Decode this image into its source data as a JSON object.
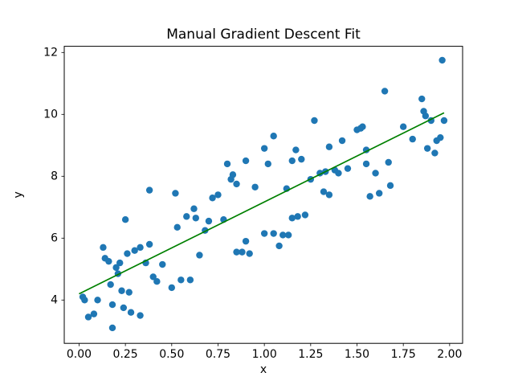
{
  "figure": {
    "title": "Manual Gradient Descent Fit",
    "xlabel": "x",
    "ylabel": "y"
  },
  "chart_data": {
    "type": "scatter",
    "title": "Manual Gradient Descent Fit",
    "xlabel": "x",
    "ylabel": "y",
    "xlim": [
      -0.08,
      2.07
    ],
    "ylim": [
      2.6,
      12.2
    ],
    "xticks": [
      0.0,
      0.25,
      0.5,
      0.75,
      1.0,
      1.25,
      1.5,
      1.75,
      2.0
    ],
    "xtick_labels": [
      "0.00",
      "0.25",
      "0.50",
      "0.75",
      "1.00",
      "1.25",
      "1.50",
      "1.75",
      "2.00"
    ],
    "yticks": [
      4,
      6,
      8,
      10,
      12
    ],
    "ytick_labels": [
      "4",
      "6",
      "8",
      "10",
      "12"
    ],
    "grid": false,
    "legend": "none",
    "point_color": "#1f77b4",
    "line_color": "#008000",
    "fit_line": {
      "x": [
        0.0,
        1.97
      ],
      "y": [
        4.2,
        10.05
      ],
      "slope_estimate": 2.97,
      "intercept_estimate": 4.2
    },
    "points": [
      [
        0.02,
        4.1
      ],
      [
        0.03,
        4.0
      ],
      [
        0.05,
        3.45
      ],
      [
        0.08,
        3.55
      ],
      [
        0.1,
        4.0
      ],
      [
        0.13,
        5.7
      ],
      [
        0.14,
        5.35
      ],
      [
        0.16,
        5.25
      ],
      [
        0.17,
        4.5
      ],
      [
        0.18,
        3.85
      ],
      [
        0.18,
        3.1
      ],
      [
        0.2,
        5.05
      ],
      [
        0.21,
        4.85
      ],
      [
        0.22,
        5.2
      ],
      [
        0.23,
        4.3
      ],
      [
        0.24,
        3.75
      ],
      [
        0.25,
        6.6
      ],
      [
        0.26,
        5.5
      ],
      [
        0.27,
        4.25
      ],
      [
        0.28,
        3.6
      ],
      [
        0.3,
        5.6
      ],
      [
        0.33,
        5.7
      ],
      [
        0.33,
        3.5
      ],
      [
        0.36,
        5.2
      ],
      [
        0.38,
        5.8
      ],
      [
        0.38,
        7.55
      ],
      [
        0.4,
        4.75
      ],
      [
        0.42,
        4.6
      ],
      [
        0.45,
        5.15
      ],
      [
        0.5,
        4.4
      ],
      [
        0.52,
        7.45
      ],
      [
        0.53,
        6.35
      ],
      [
        0.55,
        4.65
      ],
      [
        0.58,
        6.7
      ],
      [
        0.6,
        4.65
      ],
      [
        0.62,
        6.95
      ],
      [
        0.63,
        6.65
      ],
      [
        0.65,
        5.45
      ],
      [
        0.68,
        6.25
      ],
      [
        0.7,
        6.55
      ],
      [
        0.72,
        7.3
      ],
      [
        0.75,
        7.4
      ],
      [
        0.78,
        6.6
      ],
      [
        0.8,
        8.4
      ],
      [
        0.82,
        7.9
      ],
      [
        0.83,
        8.05
      ],
      [
        0.85,
        7.75
      ],
      [
        0.85,
        5.55
      ],
      [
        0.88,
        5.55
      ],
      [
        0.9,
        5.9
      ],
      [
        0.9,
        8.5
      ],
      [
        0.92,
        5.5
      ],
      [
        0.95,
        7.65
      ],
      [
        1.0,
        8.9
      ],
      [
        1.0,
        6.15
      ],
      [
        1.02,
        8.4
      ],
      [
        1.05,
        6.15
      ],
      [
        1.05,
        9.3
      ],
      [
        1.08,
        5.75
      ],
      [
        1.1,
        6.1
      ],
      [
        1.12,
        7.6
      ],
      [
        1.13,
        6.1
      ],
      [
        1.15,
        6.65
      ],
      [
        1.15,
        8.5
      ],
      [
        1.17,
        8.85
      ],
      [
        1.18,
        6.7
      ],
      [
        1.2,
        8.55
      ],
      [
        1.22,
        6.75
      ],
      [
        1.25,
        7.9
      ],
      [
        1.27,
        9.8
      ],
      [
        1.3,
        8.1
      ],
      [
        1.32,
        7.5
      ],
      [
        1.33,
        8.15
      ],
      [
        1.35,
        8.95
      ],
      [
        1.35,
        7.4
      ],
      [
        1.38,
        8.2
      ],
      [
        1.4,
        8.1
      ],
      [
        1.42,
        9.15
      ],
      [
        1.45,
        8.25
      ],
      [
        1.5,
        9.5
      ],
      [
        1.52,
        9.55
      ],
      [
        1.53,
        9.6
      ],
      [
        1.55,
        8.85
      ],
      [
        1.55,
        8.4
      ],
      [
        1.57,
        7.35
      ],
      [
        1.6,
        8.1
      ],
      [
        1.62,
        7.45
      ],
      [
        1.65,
        10.75
      ],
      [
        1.67,
        8.45
      ],
      [
        1.68,
        7.7
      ],
      [
        1.75,
        9.6
      ],
      [
        1.8,
        9.2
      ],
      [
        1.85,
        10.5
      ],
      [
        1.86,
        10.1
      ],
      [
        1.87,
        9.95
      ],
      [
        1.88,
        8.9
      ],
      [
        1.9,
        9.8
      ],
      [
        1.92,
        8.75
      ],
      [
        1.93,
        9.15
      ],
      [
        1.95,
        9.25
      ],
      [
        1.96,
        11.75
      ],
      [
        1.97,
        9.8
      ]
    ]
  }
}
